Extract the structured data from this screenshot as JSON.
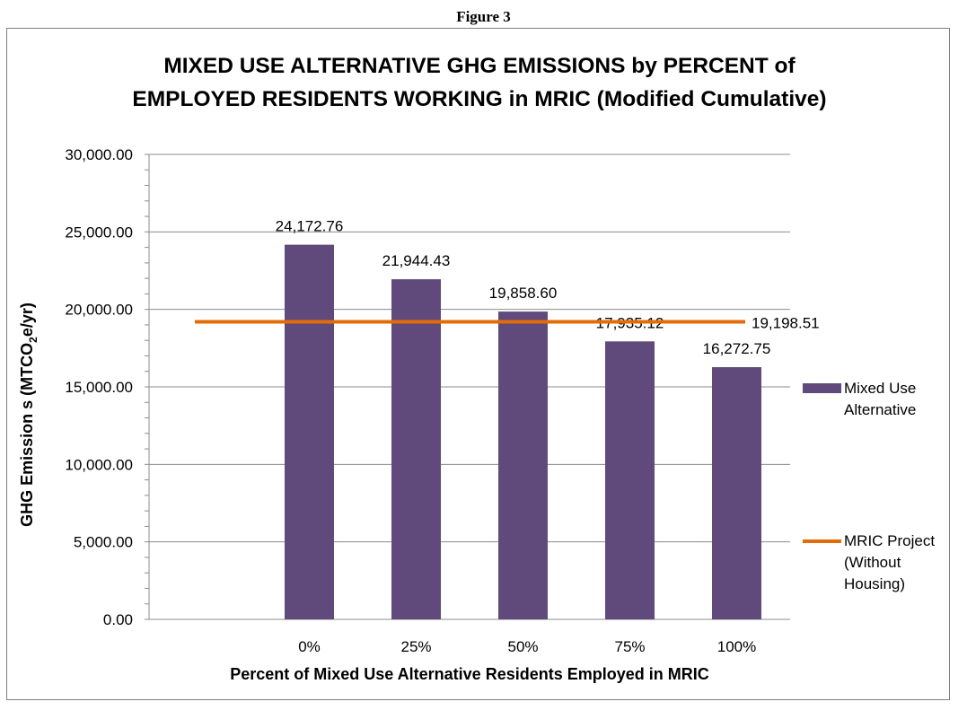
{
  "figure_label": "Figure 3",
  "chart_data": {
    "type": "bar",
    "title_line1": "MIXED USE ALTERNATIVE GHG EMISSIONS by PERCENT of",
    "title_line2": "EMPLOYED RESIDENTS WORKING in MRIC (Modified Cumulative)",
    "xlabel": "Percent of Mixed Use Alternative Residents Employed in MRIC",
    "ylabel_main": "GHG Emission s (MTCO",
    "ylabel_sub": "2",
    "ylabel_tail": "e/yr)",
    "categories": [
      "0%",
      "25%",
      "50%",
      "75%",
      "100%"
    ],
    "series": [
      {
        "name": "Mixed Use Alternative",
        "type": "bar",
        "color": "#604a7b",
        "values": [
          24172.76,
          21944.43,
          19858.6,
          17935.12,
          16272.75
        ],
        "labels": [
          "24,172.76",
          "21,944.43",
          "19,858.60",
          "17,935.12",
          "16,272.75"
        ]
      },
      {
        "name": "MRIC Project (Without Housing)",
        "type": "line",
        "color": "#e36c09",
        "value": 19198.51,
        "label": "19,198.51"
      }
    ],
    "ylim": [
      0,
      30000
    ],
    "yticks": [
      0,
      5000,
      10000,
      15000,
      20000,
      25000,
      30000
    ],
    "ytick_labels": [
      "0.00",
      "5,000.00",
      "10,000.00",
      "15,000.00",
      "20,000.00",
      "25,000.00",
      "30,000.00"
    ],
    "grid": true,
    "legend": [
      {
        "label": "Mixed Use\nAlternative"
      },
      {
        "label": "MRIC Project\n(Without\nHousing)"
      }
    ],
    "legend_position": "right"
  }
}
